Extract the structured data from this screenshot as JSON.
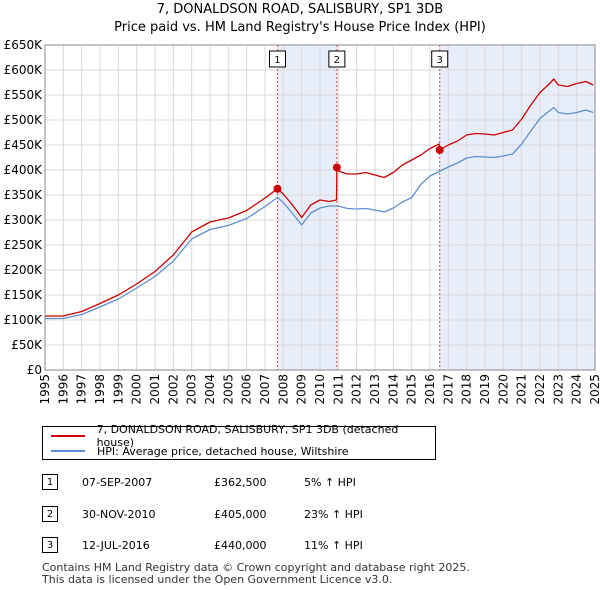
{
  "chart_data": {
    "type": "line",
    "title": "7, DONALDSON ROAD, SALISBURY, SP1 3DB",
    "subtitle": "Price paid vs. HM Land Registry's House Price Index (HPI)",
    "xlim": [
      1995,
      2025
    ],
    "ylim": [
      0,
      650000
    ],
    "y_ticks": [
      0,
      50000,
      100000,
      150000,
      200000,
      250000,
      300000,
      350000,
      400000,
      450000,
      500000,
      550000,
      600000,
      650000
    ],
    "y_tick_labels": [
      "£0",
      "£50K",
      "£100K",
      "£150K",
      "£200K",
      "£250K",
      "£300K",
      "£350K",
      "£400K",
      "£450K",
      "£500K",
      "£550K",
      "£600K",
      "£650K"
    ],
    "x_ticks": [
      1995,
      1996,
      1997,
      1998,
      1999,
      2000,
      2001,
      2002,
      2003,
      2004,
      2005,
      2006,
      2007,
      2008,
      2009,
      2010,
      2011,
      2012,
      2013,
      2014,
      2015,
      2016,
      2017,
      2018,
      2019,
      2020,
      2021,
      2022,
      2023,
      2024,
      2025
    ],
    "x_tick_labels": [
      "1995",
      "1996",
      "1997",
      "1998",
      "1999",
      "2000",
      "2001",
      "2002",
      "2003",
      "2004",
      "2005",
      "2006",
      "2007",
      "2008",
      "2009",
      "2010",
      "2011",
      "2012",
      "2013",
      "2014",
      "2015",
      "2016",
      "2017",
      "2018",
      "2019",
      "2020",
      "2021",
      "2022",
      "2023",
      "2024",
      "2025"
    ],
    "grid": true,
    "shaded_periods": [
      [
        2007.68,
        2010.92
      ],
      [
        2016.53,
        2025
      ]
    ],
    "series": [
      {
        "name": "7, DONALDSON ROAD, SALISBURY, SP1 3DB (detached house)",
        "color": "#cc0000",
        "x": [
          1995.0,
          1996.0,
          1997.0,
          1998.0,
          1999.0,
          2000.0,
          2001.0,
          2002.0,
          2003.0,
          2004.0,
          2005.0,
          2006.0,
          2007.0,
          2007.68,
          2008.0,
          2008.5,
          2009.0,
          2009.5,
          2010.0,
          2010.5,
          2010.9,
          2010.92,
          2011.0,
          2011.5,
          2012.0,
          2012.5,
          2013.0,
          2013.5,
          2014.0,
          2014.5,
          2015.0,
          2015.5,
          2016.0,
          2016.5,
          2016.53,
          2017.0,
          2017.5,
          2018.0,
          2018.5,
          2019.0,
          2019.5,
          2020.0,
          2020.5,
          2021.0,
          2021.5,
          2022.0,
          2022.5,
          2022.75,
          2023.0,
          2023.5,
          2024.0,
          2024.5,
          2024.9
        ],
        "y": [
          108000,
          108000,
          117000,
          133000,
          150000,
          172000,
          197000,
          230000,
          276000,
          296000,
          304000,
          319000,
          344000,
          362500,
          352000,
          330000,
          305000,
          330000,
          340000,
          337000,
          340000,
          405000,
          398000,
          392000,
          392000,
          395000,
          390000,
          385000,
          395000,
          410000,
          420000,
          430000,
          443000,
          452000,
          440000,
          450000,
          458000,
          470000,
          473000,
          472000,
          470000,
          475000,
          480000,
          502000,
          530000,
          555000,
          572000,
          582000,
          570000,
          567000,
          573000,
          577000,
          570000
        ]
      },
      {
        "name": "HPI: Average price, detached house, Wiltshire",
        "color": "#5f8fd0",
        "x": [
          1995.0,
          1996.0,
          1997.0,
          1998.0,
          1999.0,
          2000.0,
          2001.0,
          2002.0,
          2003.0,
          2004.0,
          2005.0,
          2006.0,
          2007.0,
          2007.68,
          2008.0,
          2008.5,
          2009.0,
          2009.5,
          2010.0,
          2010.5,
          2011.0,
          2011.5,
          2012.0,
          2012.5,
          2013.0,
          2013.5,
          2014.0,
          2014.5,
          2015.0,
          2015.5,
          2016.0,
          2016.5,
          2017.0,
          2017.5,
          2018.0,
          2018.5,
          2019.0,
          2019.5,
          2020.0,
          2020.5,
          2021.0,
          2021.5,
          2022.0,
          2022.5,
          2022.75,
          2023.0,
          2023.5,
          2024.0,
          2024.5,
          2024.9
        ],
        "y": [
          103000,
          103000,
          111000,
          126000,
          142000,
          164000,
          187000,
          218000,
          262000,
          281000,
          289000,
          303000,
          327000,
          345000,
          335000,
          313000,
          290000,
          314000,
          324000,
          328000,
          328000,
          323000,
          322000,
          323000,
          320000,
          316000,
          324000,
          336000,
          345000,
          371000,
          388000,
          397000,
          406000,
          414000,
          424000,
          427000,
          426000,
          425000,
          428000,
          432000,
          452000,
          478000,
          503000,
          518000,
          525000,
          515000,
          512000,
          515000,
          520000,
          515000
        ]
      }
    ],
    "sale_points": [
      {
        "label": "1",
        "x": 2007.68,
        "y": 362500
      },
      {
        "label": "2",
        "x": 2010.92,
        "y": 405000
      },
      {
        "label": "3",
        "x": 2016.53,
        "y": 440000
      }
    ]
  },
  "legend": {
    "property_label": "7, DONALDSON ROAD, SALISBURY, SP1 3DB (detached house)",
    "hpi_label": "HPI: Average price, detached house, Wiltshire",
    "property_color": "#cc0000",
    "hpi_color": "#5f8fd0"
  },
  "transactions": [
    {
      "num": "1",
      "date": "07-SEP-2007",
      "price": "£362,500",
      "hpi": "5% ↑ HPI"
    },
    {
      "num": "2",
      "date": "30-NOV-2010",
      "price": "£405,000",
      "hpi": "23% ↑ HPI"
    },
    {
      "num": "3",
      "date": "12-JUL-2016",
      "price": "£440,000",
      "hpi": "11% ↑ HPI"
    }
  ],
  "footer": {
    "line1": "Contains HM Land Registry data © Crown copyright and database right 2025.",
    "line2": "This data is licensed under the Open Government Licence v3.0."
  }
}
